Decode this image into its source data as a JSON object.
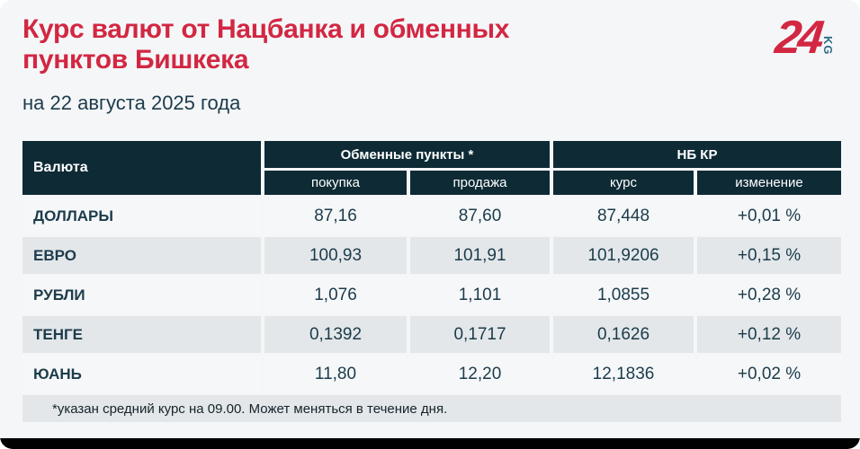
{
  "page": {
    "title": "Курс валют от Нацбанка и обменных пунктов Бишкека",
    "subtitle": "на 22 августа 2025 года"
  },
  "logo": {
    "number": "24",
    "suffix": "KG"
  },
  "table": {
    "col_currency": "Валюта",
    "group_exchange": "Обменные пункты *",
    "group_nbkr": "НБ КР",
    "col_buy": "покупка",
    "col_sell": "продажа",
    "col_rate": "курс",
    "col_change": "изменение",
    "rows": [
      {
        "name": "ДОЛЛАРЫ",
        "buy": "87,16",
        "sell": "87,60",
        "rate": "87,448",
        "change": "+0,01 %"
      },
      {
        "name": "ЕВРО",
        "buy": "100,93",
        "sell": "101,91",
        "rate": "101,9206",
        "change": "+0,15 %"
      },
      {
        "name": "РУБЛИ",
        "buy": "1,076",
        "sell": "1,101",
        "rate": "1,0855",
        "change": "+0,28 %"
      },
      {
        "name": "ТЕНГЕ",
        "buy": "0,1392",
        "sell": "0,1717",
        "rate": "0,1626",
        "change": "+0,12 %"
      },
      {
        "name": "ЮАНЬ",
        "buy": "11,80",
        "sell": "12,20",
        "rate": "12,1836",
        "change": "+0,02 %"
      }
    ],
    "footnote": "*указан средний курс на 09.00. Может меняться в течение дня."
  },
  "colors": {
    "accent_red": "#d22742",
    "header_bg": "#0e2b35",
    "row_alt": "#e3e7e9",
    "row_plain": "#f5f7f8",
    "text_dark": "#1c3b4b",
    "page_bg": "#f5f6f8",
    "logo_kg_teal": "#2e6e86",
    "bottom_bar": "#000000"
  },
  "chart_data": {
    "type": "table",
    "title": "Курс валют от Нацбанка и обменных пунктов Бишкека",
    "subtitle": "на 22 августа 2025 года",
    "column_groups": [
      "Валюта",
      "Обменные пункты *",
      "НБ КР"
    ],
    "columns": [
      "Валюта",
      "покупка",
      "продажа",
      "курс",
      "изменение"
    ],
    "rows": [
      [
        "ДОЛЛАРЫ",
        87.16,
        87.6,
        87.448,
        "+0,01 %"
      ],
      [
        "ЕВРО",
        100.93,
        101.91,
        101.9206,
        "+0,15 %"
      ],
      [
        "РУБЛИ",
        1.076,
        1.101,
        1.0855,
        "+0,28 %"
      ],
      [
        "ТЕНГЕ",
        0.1392,
        0.1717,
        0.1626,
        "+0,12 %"
      ],
      [
        "ЮАНЬ",
        11.8,
        12.2,
        12.1836,
        "+0,02 %"
      ]
    ],
    "footnote": "*указан средний курс на 09.00. Может меняться в течение дня."
  }
}
